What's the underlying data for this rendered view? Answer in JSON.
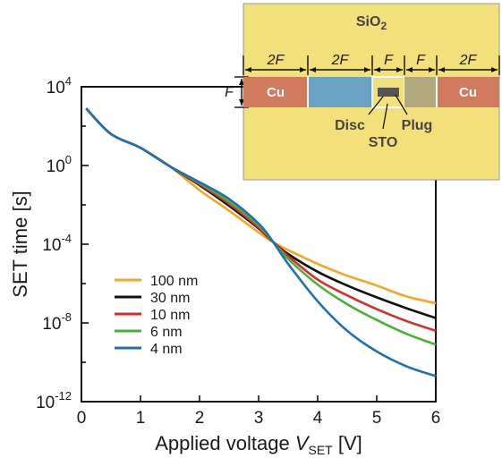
{
  "chart_data": {
    "type": "line",
    "xlabel_prefix": "Applied voltage ",
    "xlabel_var": "V",
    "xlabel_sub": "SET",
    "xlabel_unit": " [V]",
    "ylabel": "SET time [s]",
    "xlim": [
      0,
      6
    ],
    "ylim_log10": [
      -12,
      4
    ],
    "yscale": "log",
    "x_ticks": [
      0,
      1,
      2,
      3,
      4,
      5,
      6
    ],
    "y_tick_exponents": [
      4,
      0,
      -4,
      -8,
      -12
    ],
    "y_tick_base": "10",
    "legend_position": "lower-left",
    "series": [
      {
        "name": "100 nm",
        "color": "#f5a623",
        "x": [
          0.08,
          0.5,
          1.0,
          1.5,
          2.0,
          2.5,
          3.0,
          3.25,
          3.5,
          4.0,
          4.5,
          5.0,
          5.5,
          6.0
        ],
        "log10_y": [
          2.9,
          1.6,
          0.9,
          -0.05,
          -1.25,
          -2.3,
          -3.4,
          -3.9,
          -4.3,
          -5.0,
          -5.6,
          -6.1,
          -6.65,
          -7.0
        ]
      },
      {
        "name": "30 nm",
        "color": "#111111",
        "x": [
          0.08,
          0.5,
          1.0,
          1.5,
          2.0,
          2.5,
          3.0,
          3.25,
          3.5,
          4.0,
          4.5,
          5.0,
          5.5,
          6.0
        ],
        "log10_y": [
          2.9,
          1.6,
          0.9,
          -0.05,
          -1.0,
          -2.05,
          -3.2,
          -3.9,
          -4.5,
          -5.4,
          -6.1,
          -6.7,
          -7.25,
          -7.75
        ]
      },
      {
        "name": "10 nm",
        "color": "#d92b2b",
        "x": [
          0.08,
          0.5,
          1.0,
          1.5,
          2.0,
          2.5,
          3.0,
          3.25,
          3.5,
          4.0,
          4.5,
          5.0,
          5.5,
          6.0
        ],
        "log10_y": [
          2.9,
          1.6,
          0.9,
          -0.05,
          -0.95,
          -1.95,
          -3.15,
          -3.9,
          -4.6,
          -5.8,
          -6.6,
          -7.3,
          -7.9,
          -8.4
        ]
      },
      {
        "name": "6 nm",
        "color": "#4caf3a",
        "x": [
          0.08,
          0.5,
          1.0,
          1.5,
          2.0,
          2.5,
          3.0,
          3.25,
          3.5,
          4.0,
          4.5,
          5.0,
          5.5,
          6.0
        ],
        "log10_y": [
          2.9,
          1.6,
          0.9,
          -0.05,
          -0.9,
          -1.85,
          -3.05,
          -3.9,
          -4.75,
          -6.05,
          -7.05,
          -7.85,
          -8.55,
          -9.1
        ]
      },
      {
        "name": "4 nm",
        "color": "#1f6fb2",
        "x": [
          0.08,
          0.5,
          1.0,
          1.5,
          2.0,
          2.5,
          3.0,
          3.25,
          3.5,
          4.0,
          4.5,
          5.0,
          5.5,
          6.0
        ],
        "log10_y": [
          2.9,
          1.6,
          0.9,
          -0.05,
          -0.85,
          -1.7,
          -2.95,
          -3.9,
          -5.0,
          -6.9,
          -8.4,
          -9.45,
          -10.2,
          -10.7
        ]
      }
    ]
  },
  "inset": {
    "oxide_label": "SiO",
    "oxide_sub": "2",
    "left_metal": "Cu",
    "right_metal": "Cu",
    "disc_label": "Disc",
    "plug_label": "Plug",
    "sto_label": "STO",
    "dim_labels": [
      "2F",
      "2F",
      "F",
      "F",
      "2F"
    ],
    "height_label": "F",
    "colors": {
      "oxide": "#f2e07a",
      "copper": "#d27a5e",
      "blue_region": "#6ba3c4",
      "plug": "#b3a97e",
      "disc": "#555555",
      "sto": "#f2e07a"
    }
  }
}
